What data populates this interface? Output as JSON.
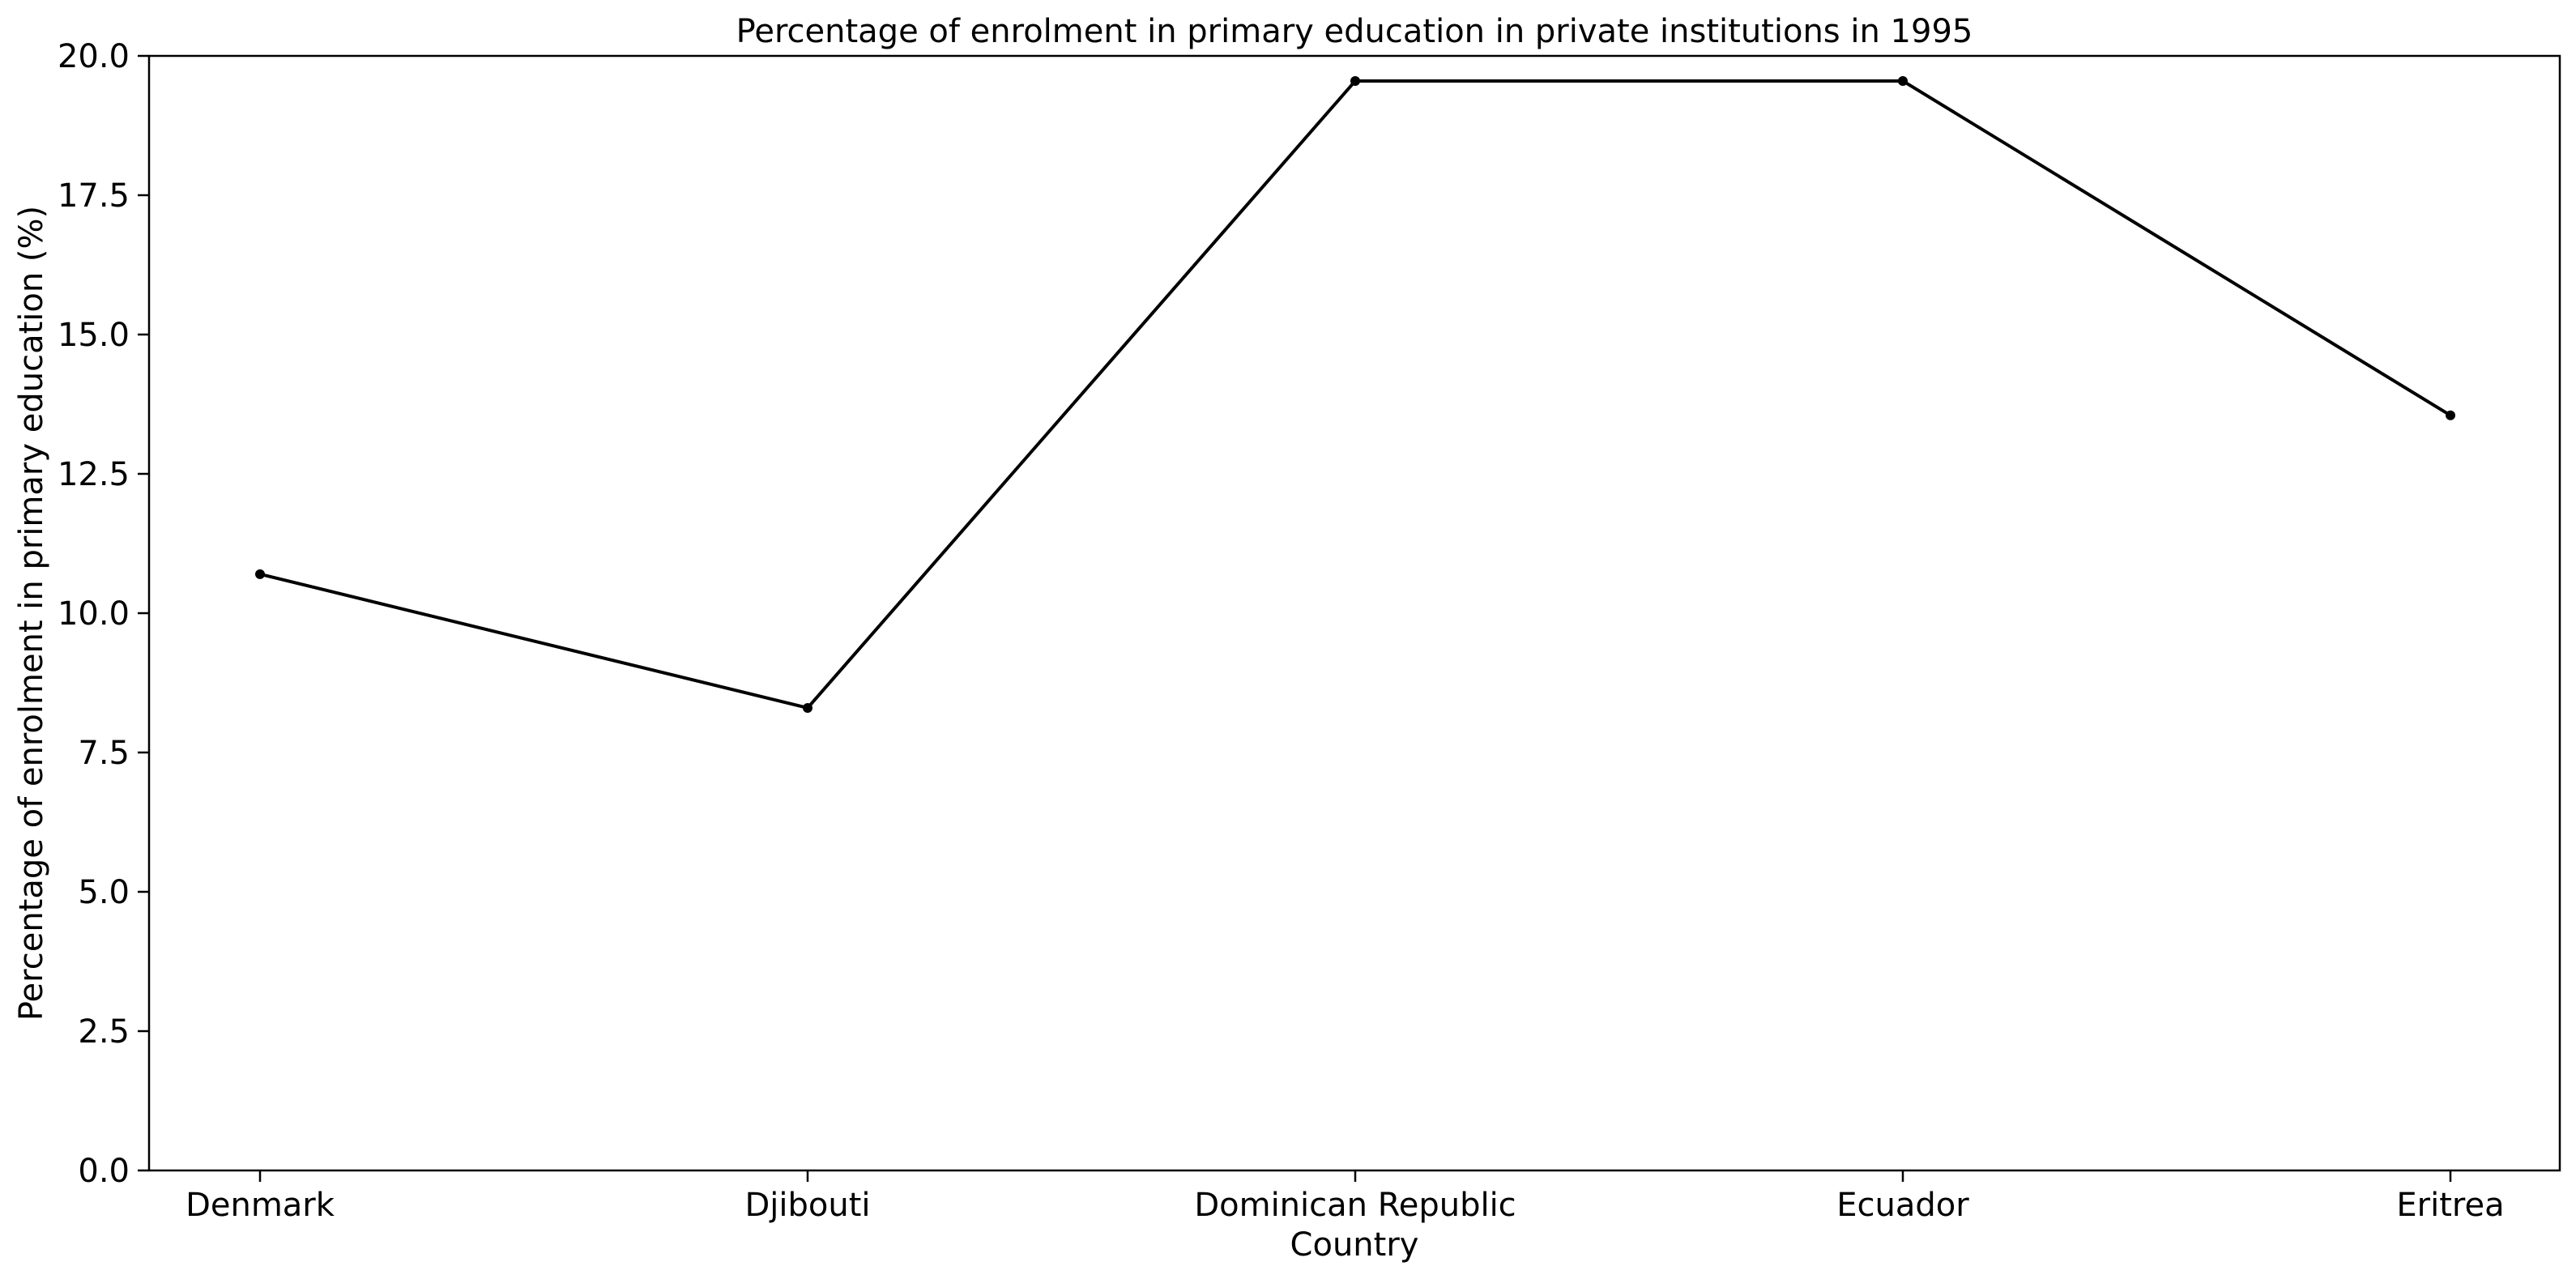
{
  "chart_data": {
    "type": "line",
    "title": "Percentage of enrolment in primary education in private institutions in 1995",
    "xlabel": "Country",
    "ylabel": "Percentage of enrolment in primary education (%)",
    "categories": [
      "Denmark",
      "Djibouti",
      "Dominican Republic",
      "Ecuador",
      "Eritrea"
    ],
    "values": [
      10.7,
      8.3,
      19.55,
      19.55,
      13.55
    ],
    "ylim": [
      0,
      20
    ],
    "yticks": [
      "0.0",
      "2.5",
      "5.0",
      "7.5",
      "10.0",
      "12.5",
      "15.0",
      "17.5",
      "20.0"
    ],
    "grid": false,
    "legend": "none",
    "line_color": "#000000",
    "marker": "dot"
  }
}
